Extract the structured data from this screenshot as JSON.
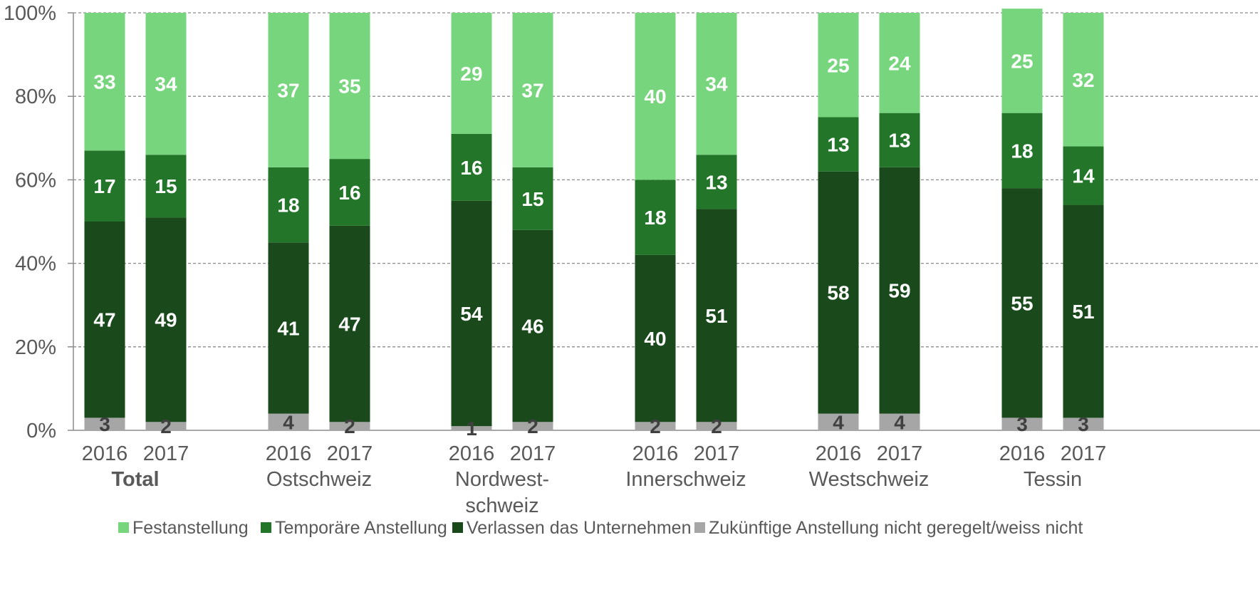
{
  "chart_data": {
    "type": "bar",
    "stacked": true,
    "percent_stacked": true,
    "y_ticks": [
      "0%",
      "20%",
      "40%",
      "60%",
      "80%",
      "100%"
    ],
    "ylim": [
      0,
      100
    ],
    "grid": "horizontal-dashed",
    "legend_position": "bottom",
    "groups": [
      {
        "label": "Total",
        "bold": true,
        "years": [
          "2016",
          "2017"
        ]
      },
      {
        "label": "Ostschweiz",
        "bold": false,
        "years": [
          "2016",
          "2017"
        ]
      },
      {
        "label": "Nordwest-\nschweiz",
        "bold": false,
        "years": [
          "2016",
          "2017"
        ]
      },
      {
        "label": "Innerschweiz",
        "bold": false,
        "years": [
          "2016",
          "2017"
        ]
      },
      {
        "label": "Westschweiz",
        "bold": false,
        "years": [
          "2016",
          "2017"
        ]
      },
      {
        "label": "Tessin",
        "bold": false,
        "years": [
          "2016",
          "2017"
        ]
      }
    ],
    "series": [
      {
        "name": "Zukünftige Anstellung nicht geregelt/weiss nicht",
        "color": "#a6a6a6",
        "label_color": "#404040",
        "values": [
          3,
          2,
          4,
          2,
          1,
          2,
          2,
          2,
          4,
          4,
          3,
          3
        ]
      },
      {
        "name": "Verlassen das Unternehmen",
        "color": "#1a4a1c",
        "label_color": "#ffffff",
        "values": [
          47,
          49,
          41,
          47,
          54,
          46,
          40,
          51,
          58,
          59,
          55,
          51
        ]
      },
      {
        "name": "Temporäre Anstellung",
        "color": "#237529",
        "label_color": "#ffffff",
        "values": [
          17,
          15,
          18,
          16,
          16,
          15,
          18,
          13,
          13,
          13,
          18,
          14
        ]
      },
      {
        "name": "Festanstellung",
        "color": "#77d57d",
        "label_color": "#ffffff",
        "values": [
          33,
          34,
          37,
          35,
          29,
          37,
          40,
          34,
          25,
          24,
          25,
          32
        ]
      }
    ],
    "legend_order": [
      "Festanstellung",
      "Temporäre Anstellung",
      "Verlassen das Unternehmen",
      "Zukünftige Anstellung nicht geregelt/weiss nicht"
    ]
  }
}
